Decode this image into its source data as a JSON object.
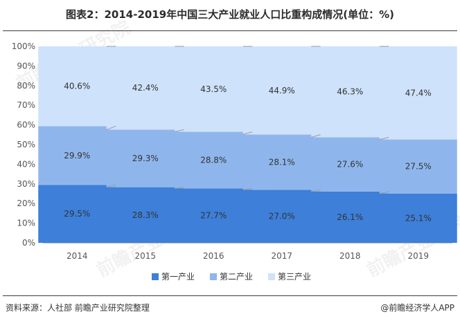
{
  "title": "图表2：2014-2019年中国三大产业就业人口比重构成情况(单位：%)",
  "footer": {
    "source": "资料来源：人社部 前瞻产业研究院整理",
    "credit": "@前瞻经济学人APP"
  },
  "watermark_text": "前瞻产业研究院",
  "chart_data": {
    "type": "bar",
    "stacked": true,
    "categories": [
      "2014",
      "2015",
      "2016",
      "2017",
      "2018",
      "2019"
    ],
    "series": [
      {
        "name": "第一产业",
        "color": "#3d7fd9",
        "values": [
          29.5,
          28.3,
          27.7,
          27.0,
          26.1,
          25.1
        ],
        "labels": [
          "29.5%",
          "28.3%",
          "27.7%",
          "27.0%",
          "26.1%",
          "25.1%"
        ]
      },
      {
        "name": "第二产业",
        "color": "#8fb6ec",
        "values": [
          29.9,
          29.3,
          28.8,
          28.1,
          27.6,
          27.5
        ],
        "labels": [
          "29.9%",
          "29.3%",
          "28.8%",
          "28.1%",
          "27.6%",
          "27.5%"
        ]
      },
      {
        "name": "第三产业",
        "color": "#cfe2fb",
        "values": [
          40.6,
          42.4,
          43.5,
          44.9,
          46.3,
          47.4
        ],
        "labels": [
          "40.6%",
          "42.4%",
          "43.5%",
          "44.9%",
          "46.3%",
          "47.4%"
        ]
      }
    ],
    "ylim": [
      0,
      100
    ],
    "yticks": [
      "0%",
      "10%",
      "20%",
      "30%",
      "40%",
      "50%",
      "60%",
      "70%",
      "80%",
      "90%",
      "100%"
    ],
    "legend_position": "bottom",
    "connector_lines": true,
    "grid": false
  }
}
